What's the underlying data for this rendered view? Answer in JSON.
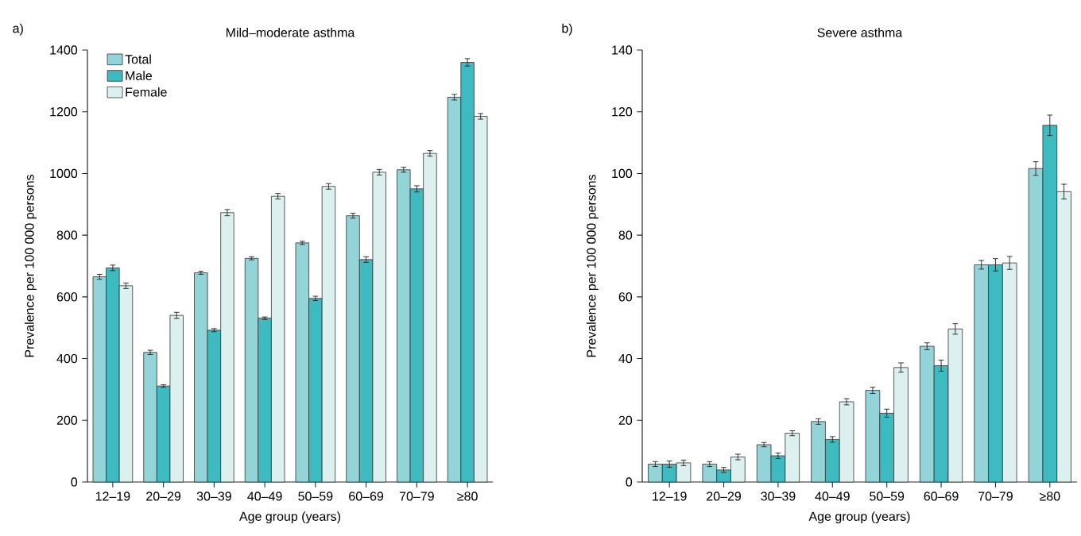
{
  "chart_data": [
    {
      "type": "bar",
      "title": "Mild–moderate asthma",
      "xlabel": "Age group (years)",
      "ylabel": "Prevalence per 100 000 persons",
      "annotations": [
        "a)"
      ],
      "categories": [
        "12–19",
        "20–29",
        "30–39",
        "40–49",
        "50–59",
        "60–69",
        "70–79",
        "≥80"
      ],
      "series": [
        {
          "name": "Total",
          "color": "#93d4d8",
          "values": [
            665,
            420,
            678,
            725,
            775,
            863,
            1012,
            1247
          ],
          "errors": [
            8,
            7,
            5,
            5,
            5,
            8,
            8,
            9
          ]
        },
        {
          "name": "Male",
          "color": "#3dbbc1",
          "values": [
            694,
            311,
            492,
            531,
            595,
            721,
            950,
            1360
          ],
          "errors": [
            9,
            4,
            5,
            4,
            7,
            9,
            10,
            12
          ]
        },
        {
          "name": "Female",
          "color": "#dcf0ef",
          "values": [
            636,
            540,
            873,
            926,
            958,
            1004,
            1065,
            1185
          ],
          "errors": [
            9,
            10,
            10,
            9,
            9,
            9,
            9,
            9
          ]
        }
      ],
      "ylim": [
        0,
        1400
      ],
      "yticks": [
        0,
        200,
        400,
        600,
        800,
        1000,
        1200,
        1400
      ],
      "legend": "top left",
      "grid": false
    },
    {
      "type": "bar",
      "title": "Severe asthma",
      "xlabel": "Age group (years)",
      "ylabel": "Prevalence per 100 000 persons",
      "annotations": [
        "b)"
      ],
      "categories": [
        "12–19",
        "20–29",
        "30–39",
        "40–49",
        "50–59",
        "60–69",
        "70–79",
        "≥80"
      ],
      "series": [
        {
          "color": "#93d4d8",
          "values": [
            5.8,
            5.8,
            12.1,
            19.6,
            29.7,
            44.0,
            70.4,
            101.6
          ],
          "errors": [
            0.8,
            0.8,
            0.7,
            0.9,
            1.0,
            1.1,
            1.4,
            2.2
          ]
        },
        {
          "color": "#3dbbc1",
          "values": [
            5.8,
            3.9,
            8.5,
            13.8,
            22.3,
            37.7,
            70.4,
            115.6
          ],
          "errors": [
            1.0,
            0.8,
            0.9,
            0.9,
            1.3,
            1.8,
            2.0,
            3.3
          ]
        },
        {
          "color": "#dcf0ef",
          "values": [
            6.2,
            8.1,
            15.8,
            26.0,
            37.1,
            49.6,
            71.0,
            94.1
          ],
          "errors": [
            0.9,
            0.9,
            0.8,
            1.0,
            1.5,
            1.7,
            2.1,
            2.4
          ]
        }
      ],
      "ylim": [
        0,
        140
      ],
      "yticks": [
        0,
        20,
        40,
        60,
        80,
        100,
        120,
        140
      ],
      "legend": false,
      "grid": false
    }
  ]
}
